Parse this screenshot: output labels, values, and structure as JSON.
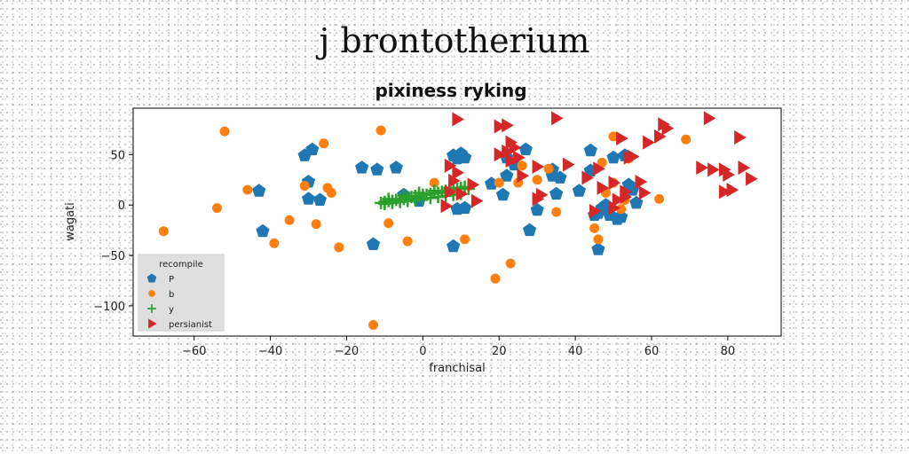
{
  "suptitle": "j brontotherium",
  "chart_data": {
    "type": "scatter",
    "title": "pixiness ryking",
    "xlabel": "franchisal",
    "ylabel": "wagati",
    "xlim": [
      -76,
      94
    ],
    "ylim": [
      -130,
      96
    ],
    "xticks": [
      -60,
      -40,
      -20,
      0,
      20,
      40,
      60,
      80
    ],
    "yticks": [
      -100,
      -50,
      0,
      50
    ],
    "xtick_labels": [
      "−60",
      "−40",
      "−20",
      "0",
      "20",
      "40",
      "60",
      "80"
    ],
    "ytick_labels": [
      "−100",
      "−50",
      "0",
      "50"
    ],
    "grid": false,
    "legend": {
      "title": "recompile",
      "position": "lower-left"
    },
    "series": [
      {
        "name": "P",
        "marker": "pentagon",
        "color": "#1f77b4",
        "points": [
          [
            -43,
            14
          ],
          [
            -31,
            49
          ],
          [
            -29,
            55
          ],
          [
            -30,
            23
          ],
          [
            -30,
            6
          ],
          [
            -27,
            5
          ],
          [
            -42,
            -26
          ],
          [
            -16,
            37
          ],
          [
            -12,
            35
          ],
          [
            -7,
            37
          ],
          [
            -13,
            -39
          ],
          [
            -5,
            10
          ],
          [
            -1,
            4
          ],
          [
            8,
            49
          ],
          [
            9,
            46
          ],
          [
            10,
            51
          ],
          [
            11,
            47
          ],
          [
            8,
            -41
          ],
          [
            9,
            -4
          ],
          [
            11,
            -3
          ],
          [
            18,
            21
          ],
          [
            21,
            10
          ],
          [
            22,
            47
          ],
          [
            24,
            40
          ],
          [
            27,
            55
          ],
          [
            28,
            -25
          ],
          [
            30,
            -5
          ],
          [
            34,
            35
          ],
          [
            35,
            11
          ],
          [
            36,
            27
          ],
          [
            41,
            14
          ],
          [
            44,
            54
          ],
          [
            44,
            34
          ],
          [
            45,
            -10
          ],
          [
            46,
            -8
          ],
          [
            46,
            -44
          ],
          [
            47,
            -3
          ],
          [
            48,
            0
          ],
          [
            49,
            -10
          ],
          [
            50,
            47
          ],
          [
            51,
            -14
          ],
          [
            52,
            -12
          ],
          [
            53,
            49
          ],
          [
            54,
            20
          ],
          [
            55,
            15
          ],
          [
            56,
            2
          ],
          [
            34,
            29
          ],
          [
            22,
            29
          ]
        ]
      },
      {
        "name": "b",
        "marker": "circle",
        "color": "#ff7f0e",
        "points": [
          [
            -52,
            73
          ],
          [
            -68,
            -26
          ],
          [
            -54,
            -3
          ],
          [
            -46,
            15
          ],
          [
            -39,
            -38
          ],
          [
            -35,
            -15
          ],
          [
            -31,
            19
          ],
          [
            -28,
            -19
          ],
          [
            -26,
            61
          ],
          [
            -25,
            17
          ],
          [
            -24,
            12
          ],
          [
            -22,
            -42
          ],
          [
            -11,
            74
          ],
          [
            -9,
            -18
          ],
          [
            -13,
            -119
          ],
          [
            -4,
            -36
          ],
          [
            3,
            22
          ],
          [
            11,
            -34
          ],
          [
            19,
            -73
          ],
          [
            20,
            22
          ],
          [
            23,
            -58
          ],
          [
            26,
            39
          ],
          [
            30,
            25
          ],
          [
            33,
            36
          ],
          [
            35,
            -7
          ],
          [
            46,
            -34
          ],
          [
            47,
            42
          ],
          [
            48,
            12
          ],
          [
            50,
            22
          ],
          [
            50,
            68
          ],
          [
            52,
            -4
          ],
          [
            53,
            5
          ],
          [
            54,
            46
          ],
          [
            62,
            6
          ],
          [
            69,
            65
          ],
          [
            45,
            -23
          ],
          [
            25,
            22
          ]
        ]
      },
      {
        "name": "y",
        "marker": "plus",
        "color": "#2ca02c",
        "points": [
          [
            -11,
            2
          ],
          [
            -10,
            3
          ],
          [
            -9,
            4
          ],
          [
            -8,
            4
          ],
          [
            -7,
            5
          ],
          [
            -6,
            6
          ],
          [
            -5,
            6
          ],
          [
            -4,
            7
          ],
          [
            -3,
            8
          ],
          [
            -2,
            9
          ],
          [
            -1,
            9
          ],
          [
            0,
            10
          ],
          [
            1,
            10
          ],
          [
            2,
            11
          ],
          [
            3,
            12
          ],
          [
            4,
            12
          ],
          [
            5,
            13
          ],
          [
            6,
            14
          ],
          [
            7,
            15
          ],
          [
            8,
            15
          ],
          [
            9,
            16
          ],
          [
            10,
            17
          ],
          [
            11,
            18
          ],
          [
            -10,
            1
          ],
          [
            -8,
            2
          ],
          [
            -6,
            3
          ],
          [
            -4,
            4
          ],
          [
            -2,
            5
          ],
          [
            0,
            6
          ],
          [
            2,
            7
          ],
          [
            4,
            8
          ],
          [
            6,
            9
          ],
          [
            8,
            10
          ],
          [
            10,
            11
          ],
          [
            -9,
            6
          ],
          [
            -5,
            9
          ],
          [
            -1,
            12
          ],
          [
            3,
            14
          ],
          [
            7,
            17
          ],
          [
            12,
            16
          ]
        ]
      },
      {
        "name": "persianist",
        "marker": "triangle-right",
        "color": "#d62728",
        "points": [
          [
            9,
            85
          ],
          [
            20,
            78
          ],
          [
            22,
            79
          ],
          [
            23,
            62
          ],
          [
            24,
            57
          ],
          [
            35,
            86
          ],
          [
            20,
            50
          ],
          [
            22,
            53
          ],
          [
            23,
            44
          ],
          [
            25,
            47
          ],
          [
            26,
            29
          ],
          [
            30,
            38
          ],
          [
            7,
            39
          ],
          [
            9,
            32
          ],
          [
            8,
            24
          ],
          [
            13,
            20
          ],
          [
            6,
            -1
          ],
          [
            7,
            13
          ],
          [
            10,
            11
          ],
          [
            14,
            4
          ],
          [
            30,
            6
          ],
          [
            31,
            10
          ],
          [
            38,
            40
          ],
          [
            43,
            27
          ],
          [
            45,
            -6
          ],
          [
            46,
            36
          ],
          [
            47,
            17
          ],
          [
            50,
            22
          ],
          [
            50,
            -3
          ],
          [
            51,
            5
          ],
          [
            52,
            66
          ],
          [
            53,
            8
          ],
          [
            54,
            47
          ],
          [
            55,
            48
          ],
          [
            57,
            23
          ],
          [
            58,
            12
          ],
          [
            59,
            62
          ],
          [
            62,
            68
          ],
          [
            63,
            80
          ],
          [
            64,
            76
          ],
          [
            73,
            37
          ],
          [
            75,
            86
          ],
          [
            76,
            35
          ],
          [
            79,
            35
          ],
          [
            79,
            13
          ],
          [
            80,
            30
          ],
          [
            81,
            15
          ],
          [
            83,
            67
          ],
          [
            84,
            37
          ],
          [
            86,
            26
          ],
          [
            53,
            13
          ]
        ]
      }
    ]
  }
}
